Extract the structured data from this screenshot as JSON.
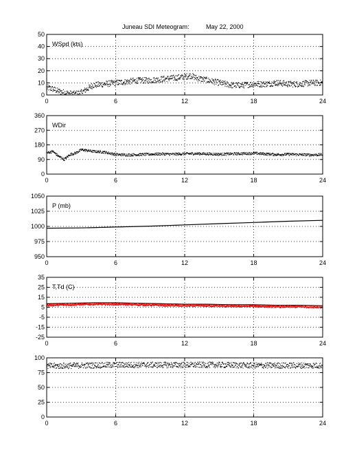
{
  "title": {
    "station": "Juneau SDI Meteogram:",
    "date": "May 22, 2000"
  },
  "colors": {
    "axes": "#000000",
    "series_black": "#000000",
    "series_red": "#ff0000",
    "background": "#ffffff"
  },
  "chart_data": [
    {
      "type": "scatter",
      "label": "WSpd (kts)",
      "xlim": [
        0,
        24
      ],
      "ylim": [
        0,
        50
      ],
      "xticks": [
        0,
        6,
        12,
        18,
        24
      ],
      "yticks": [
        0,
        10,
        20,
        30,
        40,
        50
      ],
      "grid": true,
      "series": [
        {
          "color": "#000000",
          "spread": 2.5,
          "x": [
            0,
            0.5,
            1,
            1.5,
            2,
            2.5,
            3,
            3.5,
            4,
            5,
            6,
            7,
            8,
            9,
            10,
            11,
            12,
            12.5,
            13,
            14,
            15,
            16,
            17,
            18,
            19,
            20,
            21,
            22,
            23,
            24
          ],
          "y": [
            6,
            5,
            3,
            2,
            1,
            1,
            2,
            5,
            8,
            9,
            10,
            11,
            12,
            12,
            13,
            14,
            15,
            16,
            14,
            12,
            10,
            8,
            8,
            9,
            9,
            10,
            9,
            9,
            10,
            10
          ]
        }
      ]
    },
    {
      "type": "scatter",
      "label": "WDir",
      "xlim": [
        0,
        24
      ],
      "ylim": [
        0,
        360
      ],
      "xticks": [
        0,
        6,
        12,
        18,
        24
      ],
      "yticks": [
        0,
        90,
        180,
        270,
        360
      ],
      "grid": true,
      "series": [
        {
          "color": "#000000",
          "spread": 8,
          "x": [
            0,
            0.5,
            1,
            1.5,
            2,
            2.5,
            3,
            3.5,
            4,
            5,
            6,
            7,
            8,
            9,
            10,
            11,
            12,
            13,
            14,
            15,
            16,
            17,
            18,
            19,
            20,
            21,
            22,
            23,
            24
          ],
          "y": [
            130,
            140,
            110,
            90,
            120,
            130,
            150,
            145,
            140,
            135,
            120,
            118,
            120,
            122,
            124,
            122,
            125,
            126,
            124,
            122,
            124,
            126,
            128,
            124,
            120,
            122,
            120,
            118,
            120
          ]
        }
      ]
    },
    {
      "type": "line",
      "label": "P (mb)",
      "xlim": [
        0,
        24
      ],
      "ylim": [
        950,
        1050
      ],
      "xticks": [
        0,
        6,
        12,
        18,
        24
      ],
      "yticks": [
        950,
        975,
        1000,
        1025,
        1050
      ],
      "grid": true,
      "series": [
        {
          "color": "#000000",
          "x": [
            0,
            3,
            6,
            9,
            12,
            15,
            18,
            21,
            24
          ],
          "y": [
            997,
            997.5,
            999,
            1000.5,
            1002.5,
            1004.5,
            1006.5,
            1008.5,
            1010
          ]
        }
      ]
    },
    {
      "type": "line",
      "label": "T,Td (C)",
      "xlim": [
        0,
        24
      ],
      "ylim": [
        -25,
        35
      ],
      "xticks": [
        0,
        6,
        12,
        18,
        24
      ],
      "yticks": [
        -25,
        -15,
        -5,
        5,
        15,
        25,
        35
      ],
      "grid": true,
      "series": [
        {
          "color": "#000000",
          "x": [
            0,
            2,
            4,
            6,
            8,
            10,
            12,
            14,
            16,
            18,
            20,
            22,
            24
          ],
          "y": [
            8.5,
            9,
            9.5,
            9.5,
            9,
            8.5,
            8,
            8,
            7.5,
            7.5,
            7,
            7,
            6.5
          ]
        },
        {
          "color": "#ff0000",
          "spread": 1.2,
          "x": [
            0,
            2,
            4,
            6,
            8,
            10,
            12,
            14,
            16,
            18,
            20,
            22,
            24
          ],
          "y": [
            7,
            7.5,
            8,
            8,
            7.5,
            7,
            6.5,
            6.5,
            6,
            6,
            5.5,
            5.5,
            5
          ]
        }
      ]
    },
    {
      "type": "scatter",
      "label": "",
      "xlim": [
        0,
        24
      ],
      "ylim": [
        0,
        100
      ],
      "xticks": [
        0,
        6,
        12,
        18,
        24
      ],
      "yticks": [
        0,
        25,
        50,
        75,
        100
      ],
      "grid": true,
      "series": [
        {
          "color": "#000000",
          "spread": 5,
          "x": [
            0,
            3,
            6,
            9,
            12,
            15,
            18,
            21,
            24
          ],
          "y": [
            86,
            87,
            88,
            88,
            88,
            88,
            87,
            87,
            87
          ]
        }
      ]
    }
  ]
}
